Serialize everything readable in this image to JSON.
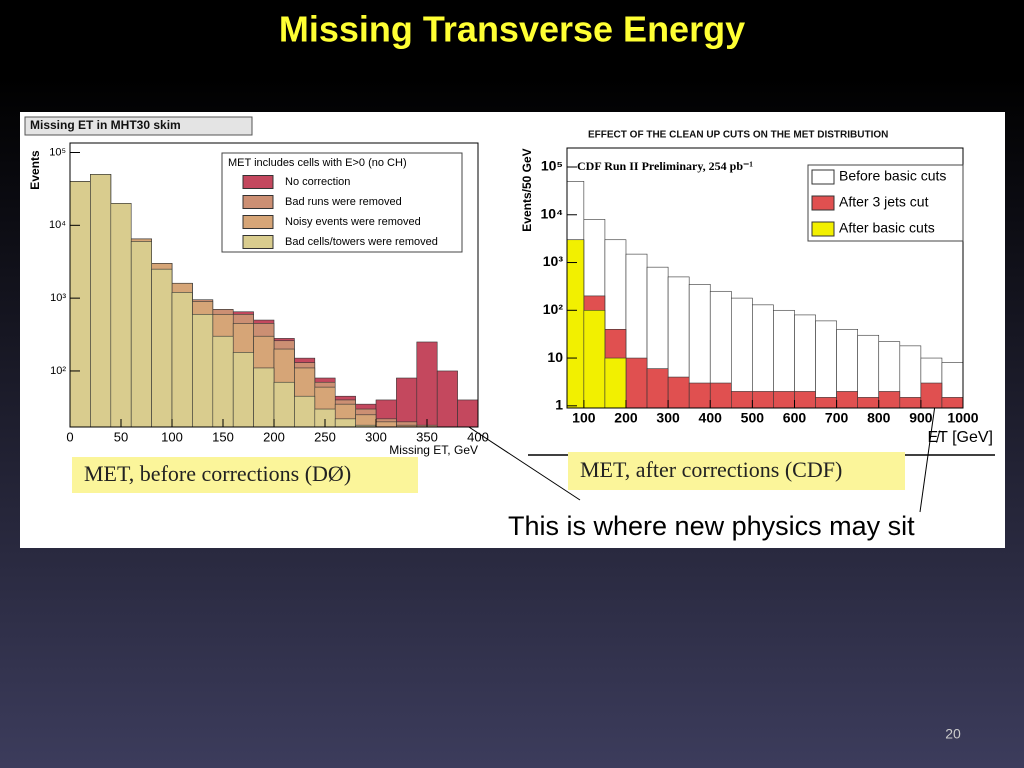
{
  "title": "Missing Transverse Energy",
  "page_number": "20",
  "annotation": "This is where new physics may sit",
  "captions": [
    "MET, before corrections (DØ)",
    "MET, after corrections (CDF)"
  ],
  "chart_data": [
    {
      "type": "histogram",
      "title": "Missing ET in MHT30 skim",
      "legend_title": "MET includes cells with E>0 (no CH)",
      "xlabel": "Missing ET, GeV",
      "ylabel": "Events",
      "log_y": true,
      "xlim": [
        0,
        400
      ],
      "xticks": [
        0,
        50,
        100,
        150,
        200,
        250,
        300,
        350,
        400
      ],
      "ylim": [
        17,
        135000
      ],
      "yticks": [
        {
          "value": 100,
          "label": "10²"
        },
        {
          "value": 1000,
          "label": "10³"
        },
        {
          "value": 10000,
          "label": "10⁴"
        },
        {
          "value": 100000,
          "label": "10⁵"
        }
      ],
      "bins": [
        0,
        20,
        40,
        60,
        80,
        100,
        120,
        140,
        160,
        180,
        200,
        220,
        240,
        260,
        280,
        300,
        320,
        340,
        360,
        380,
        400
      ],
      "series": [
        {
          "name": "No correction",
          "color": "#c4485e",
          "values": [
            40000,
            50000,
            20000,
            6500,
            3000,
            1600,
            950,
            700,
            650,
            500,
            280,
            150,
            80,
            45,
            35,
            40,
            80,
            250,
            100,
            40
          ]
        },
        {
          "name": "Bad runs were removed",
          "color": "#cc8f73",
          "values": [
            40000,
            50000,
            20000,
            6500,
            3000,
            1600,
            950,
            700,
            600,
            450,
            260,
            130,
            70,
            40,
            30,
            22,
            20,
            18,
            16,
            15
          ]
        },
        {
          "name": "Noisy events were removed",
          "color": "#d6a577",
          "values": [
            40000,
            50000,
            20000,
            6500,
            3000,
            1600,
            900,
            600,
            450,
            300,
            200,
            110,
            60,
            35,
            25,
            20,
            18,
            15,
            15,
            15
          ]
        },
        {
          "name": "Bad cells/towers were removed",
          "color": "#d9cc8e",
          "values": [
            40000,
            50000,
            20000,
            6000,
            2500,
            1200,
            600,
            300,
            180,
            110,
            70,
            45,
            30,
            22,
            18,
            15,
            15,
            15,
            15,
            15
          ]
        }
      ]
    },
    {
      "type": "histogram",
      "title": "EFFECT OF THE CLEAN UP CUTS ON THE MET DISTRIBUTION",
      "annotation": "CDF Run II Preliminary, 254 pb⁻¹",
      "xlabel": "E̸T [GeV]",
      "ylabel": "Events/50 GeV",
      "log_y": true,
      "xlim": [
        60,
        1000
      ],
      "xticks": [
        100,
        200,
        300,
        400,
        500,
        600,
        700,
        800,
        900,
        1000
      ],
      "ylim": [
        0.9,
        250000
      ],
      "yticks": [
        1,
        10,
        {
          "value": 100,
          "label": "10²"
        },
        {
          "value": 1000,
          "label": "10³"
        },
        {
          "value": 10000,
          "label": "10⁴"
        },
        {
          "value": 100000,
          "label": "10⁵"
        }
      ],
      "bins": [
        50,
        100,
        150,
        200,
        250,
        300,
        350,
        400,
        450,
        500,
        550,
        600,
        650,
        700,
        750,
        800,
        850,
        900,
        950,
        1000
      ],
      "series": [
        {
          "name": "Before basic cuts",
          "color": "#ffffff",
          "values": [
            50000,
            8000,
            3000,
            1500,
            800,
            500,
            350,
            250,
            180,
            130,
            100,
            80,
            60,
            40,
            30,
            22,
            18,
            10,
            8
          ]
        },
        {
          "name": "After 3 jets cut",
          "color": "#e05050",
          "values": [
            3000,
            200,
            40,
            10,
            6,
            4,
            3,
            3,
            2,
            2,
            2,
            2,
            1.5,
            2,
            1.5,
            2,
            1.5,
            3,
            1.5
          ]
        },
        {
          "name": "After basic cuts",
          "color": "#f2f000",
          "values": [
            3000,
            100,
            10,
            null,
            null,
            null,
            null,
            null,
            null,
            null,
            null,
            null,
            null,
            null,
            null,
            null,
            null,
            null,
            null
          ]
        }
      ]
    }
  ]
}
